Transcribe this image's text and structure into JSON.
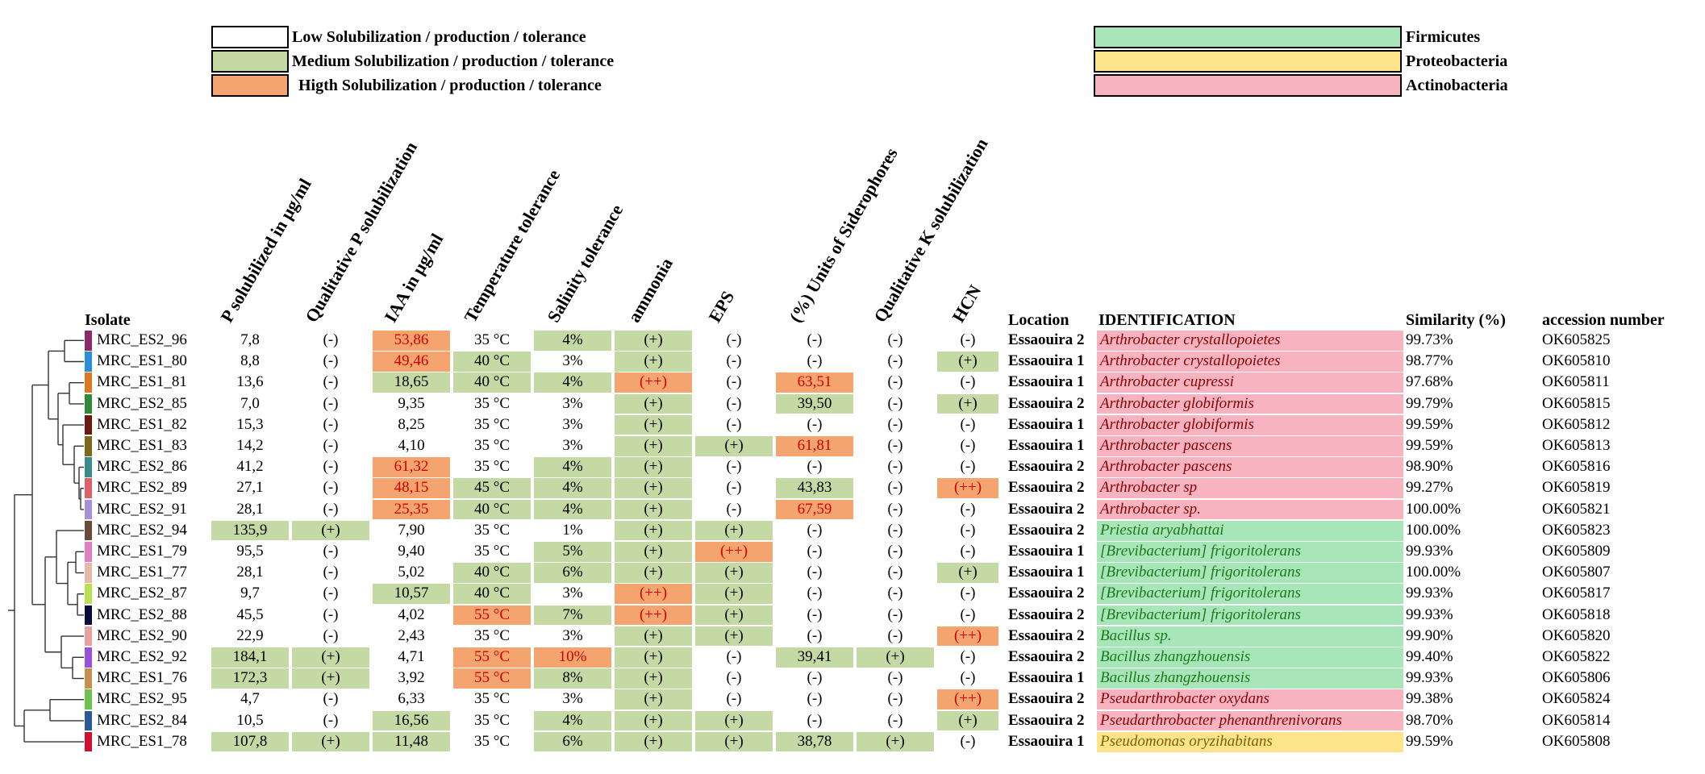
{
  "legend_levels": [
    {
      "label": "Low Solubilization / production / tolerance",
      "color": "#ffffff"
    },
    {
      "label": "Medium Solubilization / production / tolerance",
      "color": "#c5d9a5"
    },
    {
      "label": "Higth Solubilization / production / tolerance",
      "color": "#f4a46e"
    }
  ],
  "legend_phyla": [
    {
      "label": "Firmicutes",
      "color": "#a8e6b9"
    },
    {
      "label": "Proteobacteria",
      "color": "#fde38a"
    },
    {
      "label": "Actinobacteria",
      "color": "#f7b3c0"
    }
  ],
  "headers": {
    "isolate": "Isolate",
    "p_sol": "P solubilized in µg/ml",
    "qual_p": "Qualitative P solubilization",
    "iaa": "IAA in µg/ml",
    "temp": "Temperature tolerance",
    "salinity": "Salinity tolerance",
    "ammonia": "ammonia",
    "eps": "EPS",
    "sider": "(%) Units of Siderophores",
    "qual_k": "Qualitative K solubilization",
    "hcn": "HCN",
    "location": "Location",
    "identification": "IDENTIFICATION",
    "similarity": "Similarity (%)",
    "accession": "accession number"
  },
  "rows": [
    {
      "isolate": "MRC_ES2_96",
      "swatch": "#8b2a6b",
      "p": [
        "7,8",
        "low"
      ],
      "qp": [
        "(-)",
        "low"
      ],
      "iaa": [
        "53,86",
        "high"
      ],
      "temp": [
        "35 °C",
        "low"
      ],
      "sal": [
        "4%",
        "med"
      ],
      "amm": [
        "(+)",
        "med"
      ],
      "eps": [
        "(-)",
        "low"
      ],
      "sid": [
        "(-)",
        "low"
      ],
      "qk": [
        "(-)",
        "low"
      ],
      "hcn": [
        "(-)",
        "low"
      ],
      "loc": "Essaouira 2",
      "id": "Arthrobacter crystallopoietes",
      "fam": "actino",
      "sim": "99.73%",
      "acc": "OK605825"
    },
    {
      "isolate": "MRC_ES1_80",
      "swatch": "#2a8fd8",
      "p": [
        "8,8",
        "low"
      ],
      "qp": [
        "(-)",
        "low"
      ],
      "iaa": [
        "49,46",
        "high"
      ],
      "temp": [
        "40 °C",
        "med"
      ],
      "sal": [
        "3%",
        "low"
      ],
      "amm": [
        "(+)",
        "med"
      ],
      "eps": [
        "(-)",
        "low"
      ],
      "sid": [
        "(-)",
        "low"
      ],
      "qk": [
        "(-)",
        "low"
      ],
      "hcn": [
        "(+)",
        "med"
      ],
      "loc": "Essaouira 1",
      "id": "Arthrobacter crystallopoietes",
      "fam": "actino",
      "sim": "98.77%",
      "acc": "OK605810"
    },
    {
      "isolate": "MRC_ES1_81",
      "swatch": "#e07820",
      "p": [
        "13,6",
        "low"
      ],
      "qp": [
        "(-)",
        "low"
      ],
      "iaa": [
        "18,65",
        "med"
      ],
      "temp": [
        "40 °C",
        "med"
      ],
      "sal": [
        "4%",
        "med"
      ],
      "amm": [
        "(++)",
        "high"
      ],
      "eps": [
        "(-)",
        "low"
      ],
      "sid": [
        "63,51",
        "high"
      ],
      "qk": [
        "(-)",
        "low"
      ],
      "hcn": [
        "(-)",
        "low"
      ],
      "loc": "Essaouira 1",
      "id": "Arthrobacter cupressi",
      "fam": "actino",
      "sim": "97.68%",
      "acc": "OK605811"
    },
    {
      "isolate": "MRC_ES2_85",
      "swatch": "#2f8a3a",
      "p": [
        "7,0",
        "low"
      ],
      "qp": [
        "(-)",
        "low"
      ],
      "iaa": [
        "9,35",
        "low"
      ],
      "temp": [
        "35 °C",
        "low"
      ],
      "sal": [
        "3%",
        "low"
      ],
      "amm": [
        "(+)",
        "med"
      ],
      "eps": [
        "(-)",
        "low"
      ],
      "sid": [
        "39,50",
        "med"
      ],
      "qk": [
        "(-)",
        "low"
      ],
      "hcn": [
        "(+)",
        "med"
      ],
      "loc": "Essaouira 2",
      "id": "Arthrobacter globiformis",
      "fam": "actino",
      "sim": "99.79%",
      "acc": "OK605815"
    },
    {
      "isolate": "MRC_ES1_82",
      "swatch": "#6b1a10",
      "p": [
        "15,3",
        "low"
      ],
      "qp": [
        "(-)",
        "low"
      ],
      "iaa": [
        "8,25",
        "low"
      ],
      "temp": [
        "35 °C",
        "low"
      ],
      "sal": [
        "3%",
        "low"
      ],
      "amm": [
        "(+)",
        "med"
      ],
      "eps": [
        "(-)",
        "low"
      ],
      "sid": [
        "(-)",
        "low"
      ],
      "qk": [
        "(-)",
        "low"
      ],
      "hcn": [
        "(-)",
        "low"
      ],
      "loc": "Essaouira 1",
      "id": "Arthrobacter globiformis",
      "fam": "actino",
      "sim": "99.59%",
      "acc": "OK605812"
    },
    {
      "isolate": "MRC_ES1_83",
      "swatch": "#7a6a1a",
      "p": [
        "14,2",
        "low"
      ],
      "qp": [
        "(-)",
        "low"
      ],
      "iaa": [
        "4,10",
        "low"
      ],
      "temp": [
        "35 °C",
        "low"
      ],
      "sal": [
        "3%",
        "low"
      ],
      "amm": [
        "(+)",
        "med"
      ],
      "eps": [
        "(+)",
        "med"
      ],
      "sid": [
        "61,81",
        "high"
      ],
      "qk": [
        "(-)",
        "low"
      ],
      "hcn": [
        "(-)",
        "low"
      ],
      "loc": "Essaouira 1",
      "id": "Arthrobacter pascens",
      "fam": "actino",
      "sim": "99.59%",
      "acc": "OK605813"
    },
    {
      "isolate": "MRC_ES2_86",
      "swatch": "#3a8a8a",
      "p": [
        "41,2",
        "low"
      ],
      "qp": [
        "(-)",
        "low"
      ],
      "iaa": [
        "61,32",
        "high"
      ],
      "temp": [
        "35 °C",
        "low"
      ],
      "sal": [
        "4%",
        "med"
      ],
      "amm": [
        "(+)",
        "med"
      ],
      "eps": [
        "(-)",
        "low"
      ],
      "sid": [
        "(-)",
        "low"
      ],
      "qk": [
        "(-)",
        "low"
      ],
      "hcn": [
        "(-)",
        "low"
      ],
      "loc": "Essaouira 2",
      "id": "Arthrobacter pascens",
      "fam": "actino",
      "sim": "98.90%",
      "acc": "OK605816"
    },
    {
      "isolate": "MRC_ES2_89",
      "swatch": "#e0606a",
      "p": [
        "27,1",
        "low"
      ],
      "qp": [
        "(-)",
        "low"
      ],
      "iaa": [
        "48,15",
        "high"
      ],
      "temp": [
        "45 °C",
        "med"
      ],
      "sal": [
        "4%",
        "med"
      ],
      "amm": [
        "(+)",
        "med"
      ],
      "eps": [
        "(-)",
        "low"
      ],
      "sid": [
        "43,83",
        "med"
      ],
      "qk": [
        "(-)",
        "low"
      ],
      "hcn": [
        "(++)",
        "high"
      ],
      "loc": "Essaouira 2",
      "id": "Arthrobacter sp",
      "fam": "actino",
      "sim": "99.27%",
      "acc": "OK605819"
    },
    {
      "isolate": "MRC_ES2_91",
      "swatch": "#a890d8",
      "p": [
        "28,1",
        "low"
      ],
      "qp": [
        "(-)",
        "low"
      ],
      "iaa": [
        "25,35",
        "high"
      ],
      "temp": [
        "40 °C",
        "med"
      ],
      "sal": [
        "4%",
        "med"
      ],
      "amm": [
        "(+)",
        "med"
      ],
      "eps": [
        "(-)",
        "low"
      ],
      "sid": [
        "67,59",
        "high"
      ],
      "qk": [
        "(-)",
        "low"
      ],
      "hcn": [
        "(-)",
        "low"
      ],
      "loc": "Essaouira 2",
      "id": "Arthrobacter sp.",
      "fam": "actino",
      "sim": "100.00%",
      "acc": "OK605821"
    },
    {
      "isolate": "MRC_ES2_94",
      "swatch": "#6b4a3a",
      "p": [
        "135,9",
        "med"
      ],
      "qp": [
        "(+)",
        "med"
      ],
      "iaa": [
        "7,90",
        "low"
      ],
      "temp": [
        "35 °C",
        "low"
      ],
      "sal": [
        "1%",
        "low"
      ],
      "amm": [
        "(+)",
        "med"
      ],
      "eps": [
        "(+)",
        "med"
      ],
      "sid": [
        "(-)",
        "low"
      ],
      "qk": [
        "(-)",
        "low"
      ],
      "hcn": [
        "(-)",
        "low"
      ],
      "loc": "Essaouira 2",
      "id": "Priestia  aryabhattai",
      "fam": "firm",
      "sim": "100.00%",
      "acc": "OK605823"
    },
    {
      "isolate": "MRC_ES1_79",
      "swatch": "#e080c0",
      "p": [
        "95,5",
        "low"
      ],
      "qp": [
        "(-)",
        "low"
      ],
      "iaa": [
        "9,40",
        "low"
      ],
      "temp": [
        "35 °C",
        "low"
      ],
      "sal": [
        "5%",
        "med"
      ],
      "amm": [
        "(+)",
        "med"
      ],
      "eps": [
        "(++)",
        "high"
      ],
      "sid": [
        "(-)",
        "low"
      ],
      "qk": [
        "(-)",
        "low"
      ],
      "hcn": [
        "(-)",
        "low"
      ],
      "loc": "Essaouira 1",
      "id": "[Brevibacterium] frigoritolerans",
      "fam": "firm",
      "sim": "99.93%",
      "acc": "OK605809"
    },
    {
      "isolate": "MRC_ES1_77",
      "swatch": "#e8b8a8",
      "p": [
        "28,1",
        "low"
      ],
      "qp": [
        "(-)",
        "low"
      ],
      "iaa": [
        "5,02",
        "low"
      ],
      "temp": [
        "40 °C",
        "med"
      ],
      "sal": [
        "6%",
        "med"
      ],
      "amm": [
        "(+)",
        "med"
      ],
      "eps": [
        "(+)",
        "med"
      ],
      "sid": [
        "(-)",
        "low"
      ],
      "qk": [
        "(-)",
        "low"
      ],
      "hcn": [
        "(+)",
        "med"
      ],
      "loc": "Essaouira 1",
      "id": "[Brevibacterium] frigoritolerans",
      "fam": "firm",
      "sim": "100.00%",
      "acc": "OK605807"
    },
    {
      "isolate": "MRC_ES2_87",
      "swatch": "#b8e050",
      "p": [
        "9,7",
        "low"
      ],
      "qp": [
        "(-)",
        "low"
      ],
      "iaa": [
        "10,57",
        "med"
      ],
      "temp": [
        "40 °C",
        "med"
      ],
      "sal": [
        "3%",
        "low"
      ],
      "amm": [
        "(++)",
        "high"
      ],
      "eps": [
        "(+)",
        "med"
      ],
      "sid": [
        "(-)",
        "low"
      ],
      "qk": [
        "(-)",
        "low"
      ],
      "hcn": [
        "(-)",
        "low"
      ],
      "loc": "Essaouira 2",
      "id": "[Brevibacterium] frigoritolerans",
      "fam": "firm",
      "sim": "99.93%",
      "acc": "OK605817"
    },
    {
      "isolate": "MRC_ES2_88",
      "swatch": "#0a0a40",
      "p": [
        "45,5",
        "low"
      ],
      "qp": [
        "(-)",
        "low"
      ],
      "iaa": [
        "4,02",
        "low"
      ],
      "temp": [
        "55 °C",
        "high"
      ],
      "sal": [
        "7%",
        "med"
      ],
      "amm": [
        "(++)",
        "high"
      ],
      "eps": [
        "(+)",
        "med"
      ],
      "sid": [
        "(-)",
        "low"
      ],
      "qk": [
        "(-)",
        "low"
      ],
      "hcn": [
        "(-)",
        "low"
      ],
      "loc": "Essaouira 2",
      "id": "[Brevibacterium] frigoritolerans",
      "fam": "firm",
      "sim": "99.93%",
      "acc": "OK605818"
    },
    {
      "isolate": "MRC_ES2_90",
      "swatch": "#e8a0a0",
      "p": [
        "22,9",
        "low"
      ],
      "qp": [
        "(-)",
        "low"
      ],
      "iaa": [
        "2,43",
        "low"
      ],
      "temp": [
        "35 °C",
        "low"
      ],
      "sal": [
        "3%",
        "low"
      ],
      "amm": [
        "(+)",
        "med"
      ],
      "eps": [
        "(+)",
        "med"
      ],
      "sid": [
        "(-)",
        "low"
      ],
      "qk": [
        "(-)",
        "low"
      ],
      "hcn": [
        "(++)",
        "high"
      ],
      "loc": "Essaouira 2",
      "id": "Bacillus sp.",
      "fam": "firm",
      "sim": "99.90%",
      "acc": "OK605820"
    },
    {
      "isolate": "MRC_ES2_92",
      "swatch": "#9a50e0",
      "p": [
        "184,1",
        "med"
      ],
      "qp": [
        "(+)",
        "med"
      ],
      "iaa": [
        "4,71",
        "low"
      ],
      "temp": [
        "55 °C",
        "high"
      ],
      "sal": [
        "10%",
        "high"
      ],
      "amm": [
        "(+)",
        "med"
      ],
      "eps": [
        "(-)",
        "low"
      ],
      "sid": [
        "39,41",
        "med"
      ],
      "qk": [
        "(+)",
        "med"
      ],
      "hcn": [
        "(-)",
        "low"
      ],
      "loc": "Essaouira 2",
      "id": "Bacillus zhangzhouensis",
      "fam": "firm",
      "sim": "99.40%",
      "acc": "OK605822"
    },
    {
      "isolate": "MRC_ES1_76",
      "swatch": "#c89050",
      "p": [
        "172,3",
        "med"
      ],
      "qp": [
        "(+)",
        "med"
      ],
      "iaa": [
        "3,92",
        "low"
      ],
      "temp": [
        "55 °C",
        "high"
      ],
      "sal": [
        "8%",
        "med"
      ],
      "amm": [
        "(+)",
        "med"
      ],
      "eps": [
        "(-)",
        "low"
      ],
      "sid": [
        "(-)",
        "low"
      ],
      "qk": [
        "(-)",
        "low"
      ],
      "hcn": [
        "(-)",
        "low"
      ],
      "loc": "Essaouira 1",
      "id": "Bacillus zhangzhouensis",
      "fam": "firm",
      "sim": "99.93%",
      "acc": "OK605806"
    },
    {
      "isolate": "MRC_ES2_95",
      "swatch": "#70c050",
      "p": [
        "4,7",
        "low"
      ],
      "qp": [
        "(-)",
        "low"
      ],
      "iaa": [
        "6,33",
        "low"
      ],
      "temp": [
        "35 °C",
        "low"
      ],
      "sal": [
        "3%",
        "low"
      ],
      "amm": [
        "(+)",
        "med"
      ],
      "eps": [
        "(-)",
        "low"
      ],
      "sid": [
        "(-)",
        "low"
      ],
      "qk": [
        "(-)",
        "low"
      ],
      "hcn": [
        "(++)",
        "high"
      ],
      "loc": "Essaouira 2",
      "id": "Pseudarthrobacter oxydans",
      "fam": "actino",
      "sim": "99.38%",
      "acc": "OK605824"
    },
    {
      "isolate": "MRC_ES2_84",
      "swatch": "#2a5a9a",
      "p": [
        "10,5",
        "low"
      ],
      "qp": [
        "(-)",
        "low"
      ],
      "iaa": [
        "16,56",
        "med"
      ],
      "temp": [
        "35 °C",
        "low"
      ],
      "sal": [
        "4%",
        "med"
      ],
      "amm": [
        "(+)",
        "med"
      ],
      "eps": [
        "(+)",
        "med"
      ],
      "sid": [
        "(-)",
        "low"
      ],
      "qk": [
        "(-)",
        "low"
      ],
      "hcn": [
        "(+)",
        "med"
      ],
      "loc": "Essaouira 2",
      "id": "Pseudarthrobacter phenanthrenivorans",
      "fam": "actino",
      "sim": "98.70%",
      "acc": "OK605814"
    },
    {
      "isolate": "MRC_ES1_78",
      "swatch": "#d01030",
      "p": [
        "107,8",
        "med"
      ],
      "qp": [
        "(+)",
        "med"
      ],
      "iaa": [
        "11,48",
        "med"
      ],
      "temp": [
        "35 °C",
        "low"
      ],
      "sal": [
        "6%",
        "med"
      ],
      "amm": [
        "(+)",
        "med"
      ],
      "eps": [
        "(+)",
        "med"
      ],
      "sid": [
        "38,78",
        "med"
      ],
      "qk": [
        "(+)",
        "med"
      ],
      "hcn": [
        "(-)",
        "low"
      ],
      "loc": "Essaouira 1",
      "id": "Pseudomonas oryzihabitans",
      "fam": "prot",
      "sim": "99.59%",
      "acc": "OK605808"
    }
  ]
}
